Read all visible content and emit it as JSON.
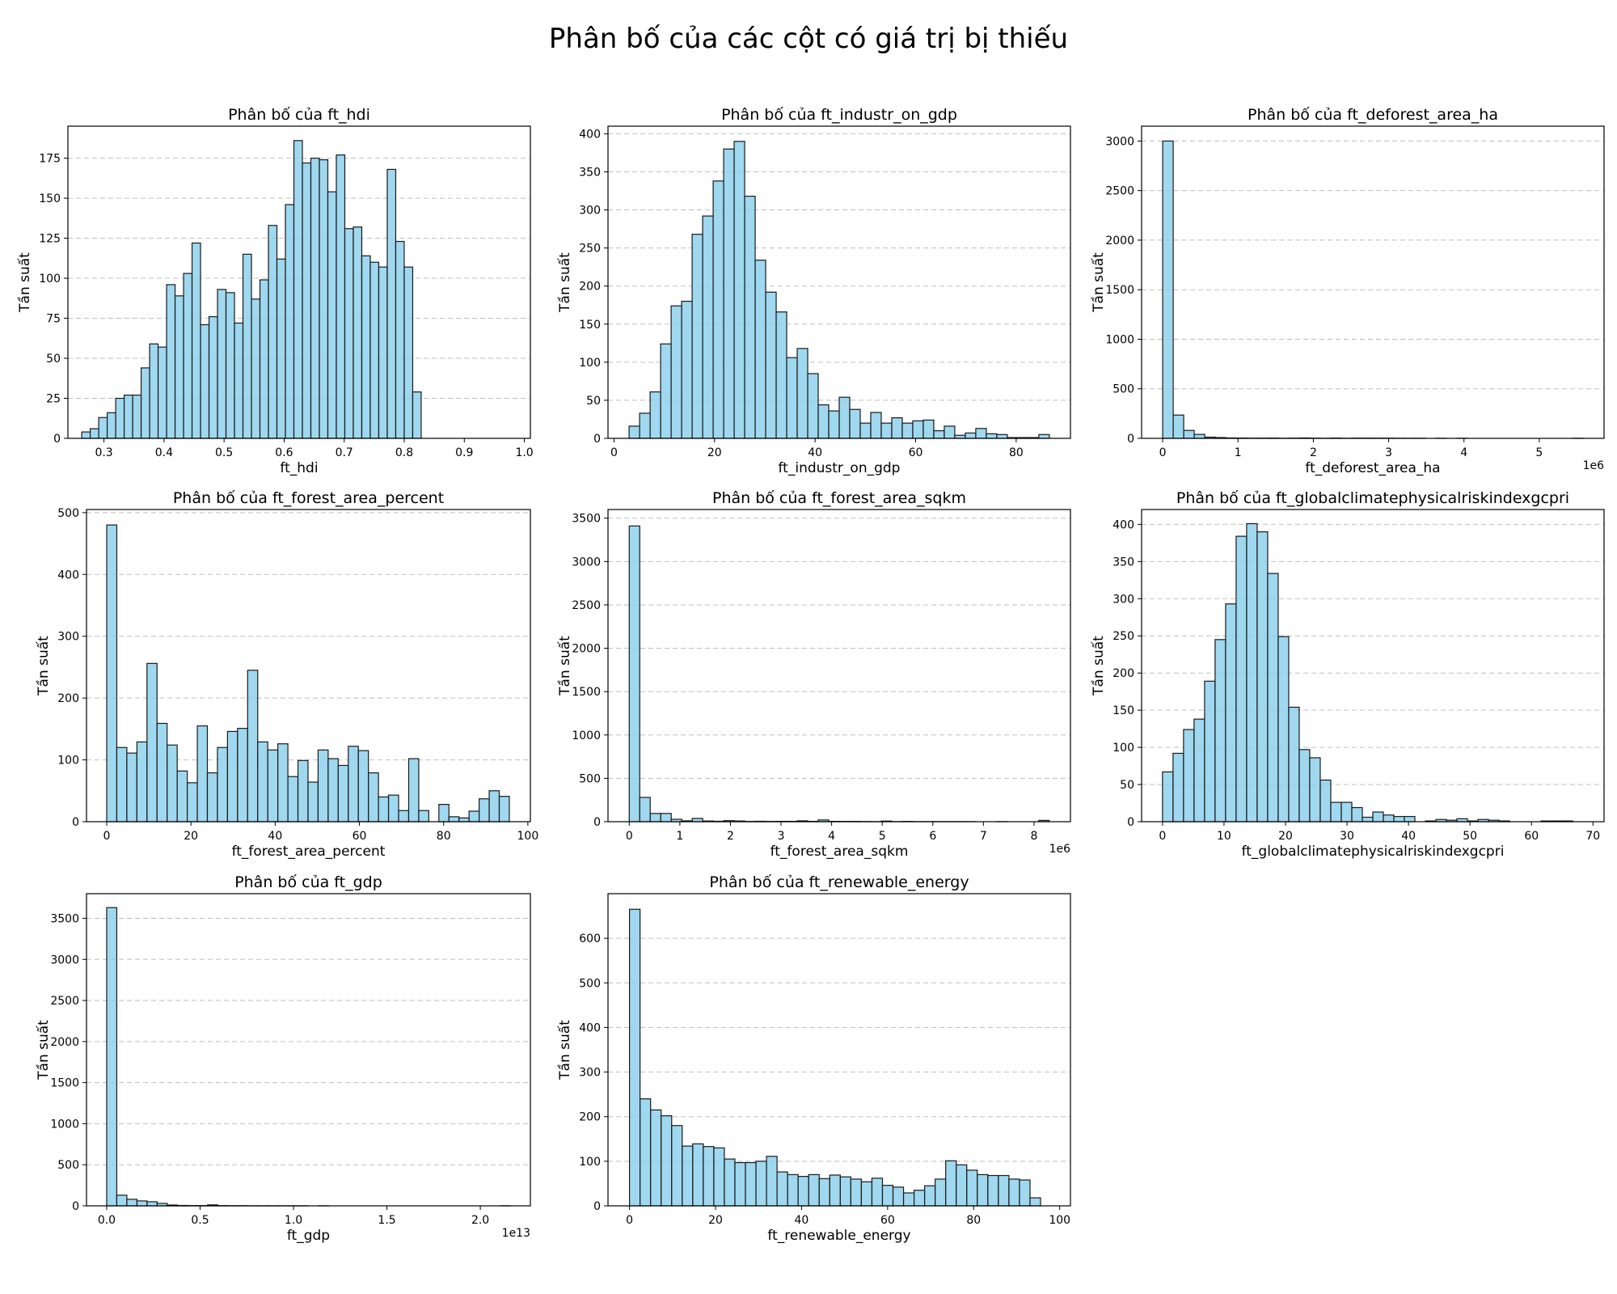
{
  "figure": {
    "title": "Phân bố của các cột có giá trị bị thiếu",
    "bar_color": "#87ceeb",
    "edge_color": "#1a1a1a",
    "grid_color": "#b0b0b0"
  },
  "chart_data": [
    {
      "type": "bar",
      "title": "Phân bố của ft_hdi",
      "xlabel": "ft_hdi",
      "ylabel": "Tần suất",
      "bin_start": 0.263,
      "bin_width": 0.01413,
      "values": [
        4,
        6,
        13,
        16,
        25,
        27,
        27,
        44,
        59,
        57,
        96,
        89,
        103,
        122,
        71,
        76,
        93,
        91,
        72,
        115,
        87,
        99,
        133,
        112,
        146,
        186,
        172,
        175,
        174,
        154,
        177,
        131,
        132,
        114,
        110,
        107,
        168,
        123,
        107,
        29
      ],
      "xlim": [
        0.24,
        1.01
      ],
      "ylim": [
        0,
        195
      ],
      "xticks": [
        0.3,
        0.4,
        0.5,
        0.6,
        0.7,
        0.8,
        0.9,
        1.0
      ],
      "xtick_labels": [
        "0.3",
        "0.4",
        "0.5",
        "0.6",
        "0.7",
        "0.8",
        "0.9",
        "1.0"
      ],
      "yticks": [
        0,
        25,
        50,
        75,
        100,
        125,
        150,
        175
      ],
      "offset_label": "",
      "grid": "y"
    },
    {
      "type": "bar",
      "title": "Phân bố của ft_industr_on_gdp",
      "xlabel": "ft_industr_on_gdp",
      "ylabel": "Tần suất",
      "bin_start": 3.0,
      "bin_width": 2.09,
      "values": [
        16,
        33,
        61,
        124,
        174,
        180,
        268,
        292,
        338,
        380,
        390,
        318,
        234,
        192,
        166,
        106,
        118,
        85,
        44,
        36,
        54,
        38,
        20,
        34,
        20,
        27,
        20,
        23,
        24,
        10,
        16,
        4,
        7,
        13,
        6,
        5,
        1,
        1,
        1,
        5
      ],
      "xlim": [
        -1.2,
        90.8
      ],
      "ylim": [
        0,
        410
      ],
      "xticks": [
        0,
        20,
        40,
        60,
        80
      ],
      "xtick_labels": [
        "0",
        "20",
        "40",
        "60",
        "80"
      ],
      "yticks": [
        0,
        50,
        100,
        150,
        200,
        250,
        300,
        350,
        400
      ],
      "offset_label": "",
      "grid": "y"
    },
    {
      "type": "bar",
      "title": "Phân bố của ft_deforest_area_ha",
      "xlabel": "ft_deforest_area_ha",
      "ylabel": "Tần suất",
      "bin_start": 0,
      "bin_width": 0.1395,
      "values": [
        3000,
        235,
        80,
        40,
        12,
        8,
        4,
        3,
        2,
        2,
        3,
        1,
        2,
        4,
        2,
        1,
        3,
        1,
        2,
        2,
        2,
        2,
        1,
        1,
        1,
        0,
        1,
        0,
        1,
        0,
        0,
        0,
        0,
        0,
        0,
        0,
        0,
        0,
        0,
        1
      ],
      "xlim": [
        -0.28,
        5.86
      ],
      "ylim": [
        0,
        3150
      ],
      "xticks": [
        0,
        1,
        2,
        3,
        4,
        5
      ],
      "xtick_labels": [
        "0",
        "1",
        "2",
        "3",
        "4",
        "5"
      ],
      "yticks": [
        0,
        500,
        1000,
        1500,
        2000,
        2500,
        3000
      ],
      "offset_label": "1e6",
      "grid": "y"
    },
    {
      "type": "bar",
      "title": "Phân bố của ft_forest_area_percent",
      "xlabel": "ft_forest_area_percent",
      "ylabel": "Tần suất",
      "bin_start": 0,
      "bin_width": 2.39,
      "values": [
        480,
        120,
        111,
        129,
        256,
        159,
        124,
        82,
        63,
        155,
        79,
        120,
        146,
        151,
        245,
        129,
        116,
        126,
        73,
        99,
        64,
        116,
        102,
        91,
        122,
        115,
        79,
        40,
        43,
        18,
        102,
        18,
        0,
        28,
        8,
        6,
        17,
        37,
        50,
        41
      ],
      "xlim": [
        -4.8,
        100.6
      ],
      "ylim": [
        0,
        505
      ],
      "xticks": [
        0,
        20,
        40,
        60,
        80,
        100
      ],
      "xtick_labels": [
        "0",
        "20",
        "40",
        "60",
        "80",
        "100"
      ],
      "yticks": [
        0,
        100,
        200,
        300,
        400,
        500
      ],
      "offset_label": "",
      "grid": "y"
    },
    {
      "type": "bar",
      "title": "Phân bố của ft_forest_area_sqkm",
      "xlabel": "ft_forest_area_sqkm",
      "ylabel": "Tần suất",
      "bin_start": 0,
      "bin_width": 0.2075,
      "values": [
        3410,
        280,
        95,
        95,
        28,
        10,
        38,
        8,
        5,
        12,
        8,
        3,
        5,
        3,
        4,
        4,
        10,
        4,
        20,
        4,
        3,
        3,
        2,
        1,
        7,
        1,
        3,
        1,
        1,
        1,
        1,
        1,
        1,
        0,
        0,
        1,
        0,
        0,
        0,
        15
      ],
      "xlim": [
        -0.42,
        8.72
      ],
      "ylim": [
        0,
        3600
      ],
      "xticks": [
        0,
        1,
        2,
        3,
        4,
        5,
        6,
        7,
        8
      ],
      "xtick_labels": [
        "0",
        "1",
        "2",
        "3",
        "4",
        "5",
        "6",
        "7",
        "8"
      ],
      "yticks": [
        0,
        500,
        1000,
        1500,
        2000,
        2500,
        3000,
        3500
      ],
      "offset_label": "1e6",
      "grid": "y"
    },
    {
      "type": "bar",
      "title": "Phân bố của ft_globalclimatephysicalriskindexgcpri",
      "xlabel": "ft_globalclimatephysicalriskindexgcpri",
      "ylabel": "Tần suất",
      "bin_start": 0,
      "bin_width": 1.71,
      "values": [
        67,
        92,
        124,
        138,
        189,
        245,
        293,
        384,
        401,
        390,
        334,
        249,
        154,
        97,
        86,
        56,
        26,
        26,
        19,
        6,
        13,
        9,
        7,
        7,
        0,
        1,
        3,
        2,
        4,
        1,
        3,
        2,
        1,
        0,
        0,
        0,
        1,
        1,
        1,
        0
      ],
      "xlim": [
        -3.4,
        71.8
      ],
      "ylim": [
        0,
        420
      ],
      "xticks": [
        0,
        10,
        20,
        30,
        40,
        50,
        60,
        70
      ],
      "xtick_labels": [
        "0",
        "10",
        "20",
        "30",
        "40",
        "50",
        "60",
        "70"
      ],
      "yticks": [
        0,
        50,
        100,
        150,
        200,
        250,
        300,
        350,
        400
      ],
      "offset_label": "",
      "grid": "y"
    },
    {
      "type": "bar",
      "title": "Phân bố của ft_gdp",
      "xlabel": "ft_gdp",
      "ylabel": "Tần suất",
      "bin_start": 0,
      "bin_width": 0.054,
      "values": [
        3630,
        130,
        80,
        60,
        50,
        30,
        10,
        5,
        3,
        3,
        12,
        3,
        2,
        2,
        1,
        1,
        1,
        1,
        1,
        1,
        0,
        1,
        0,
        0,
        0,
        0,
        0,
        0,
        0,
        0,
        0,
        0,
        0,
        0,
        0,
        0,
        0,
        0,
        0,
        1
      ],
      "xlim": [
        -0.108,
        2.268
      ],
      "ylim": [
        0,
        3800
      ],
      "xticks": [
        0,
        0.5,
        1.0,
        1.5,
        2.0
      ],
      "xtick_labels": [
        "0.0",
        "0.5",
        "1.0",
        "1.5",
        "2.0"
      ],
      "yticks": [
        0,
        500,
        1000,
        1500,
        2000,
        2500,
        3000,
        3500
      ],
      "offset_label": "1e13",
      "grid": "y"
    },
    {
      "type": "bar",
      "title": "Phân bố của ft_renewable_energy",
      "xlabel": "ft_renewable_energy",
      "ylabel": "Tần suất",
      "bin_start": 0,
      "bin_width": 2.45,
      "values": [
        665,
        240,
        215,
        202,
        180,
        134,
        139,
        133,
        130,
        105,
        97,
        97,
        100,
        111,
        76,
        70,
        66,
        70,
        61,
        69,
        65,
        60,
        54,
        62,
        46,
        42,
        29,
        35,
        45,
        60,
        101,
        92,
        80,
        70,
        68,
        68,
        60,
        58,
        18,
        0
      ],
      "xlim": [
        -5.0,
        102.5
      ],
      "ylim": [
        0,
        700
      ],
      "xticks": [
        0,
        20,
        40,
        60,
        80,
        100
      ],
      "xtick_labels": [
        "0",
        "20",
        "40",
        "60",
        "80",
        "100"
      ],
      "yticks": [
        0,
        100,
        200,
        300,
        400,
        500,
        600
      ],
      "offset_label": "",
      "grid": "y"
    }
  ]
}
